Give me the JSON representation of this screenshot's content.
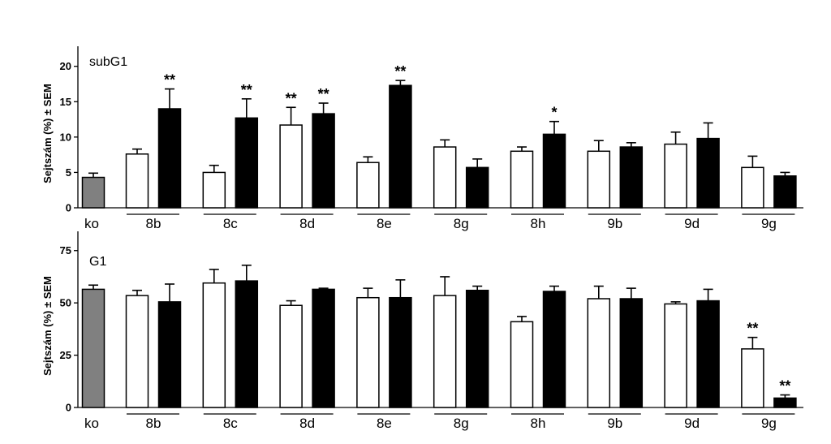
{
  "chart_data": [
    {
      "type": "bar",
      "panel_label": "subG1",
      "ylabel": "Sejtszám (%) ± SEM",
      "ylim": [
        0,
        21
      ],
      "yticks": [
        0,
        5,
        10,
        15,
        20
      ],
      "control": {
        "label": "ko",
        "value": 4.3,
        "sem": 0.6
      },
      "groups": [
        {
          "label": "8b",
          "open": {
            "value": 7.6,
            "sem": 0.7,
            "sig": ""
          },
          "filled": {
            "value": 14.0,
            "sem": 2.8,
            "sig": "**"
          }
        },
        {
          "label": "8c",
          "open": {
            "value": 5.0,
            "sem": 1.0,
            "sig": ""
          },
          "filled": {
            "value": 12.7,
            "sem": 2.7,
            "sig": "**"
          }
        },
        {
          "label": "8d",
          "open": {
            "value": 11.7,
            "sem": 2.5,
            "sig": "**"
          },
          "filled": {
            "value": 13.3,
            "sem": 1.5,
            "sig": "**"
          }
        },
        {
          "label": "8e",
          "open": {
            "value": 6.4,
            "sem": 0.8,
            "sig": ""
          },
          "filled": {
            "value": 17.3,
            "sem": 0.7,
            "sig": "**"
          }
        },
        {
          "label": "8g",
          "open": {
            "value": 8.6,
            "sem": 1.0,
            "sig": ""
          },
          "filled": {
            "value": 5.7,
            "sem": 1.2,
            "sig": ""
          }
        },
        {
          "label": "8h",
          "open": {
            "value": 8.0,
            "sem": 0.6,
            "sig": ""
          },
          "filled": {
            "value": 10.4,
            "sem": 1.8,
            "sig": "*"
          }
        },
        {
          "label": "9b",
          "open": {
            "value": 8.0,
            "sem": 1.5,
            "sig": ""
          },
          "filled": {
            "value": 8.6,
            "sem": 0.6,
            "sig": ""
          }
        },
        {
          "label": "9d",
          "open": {
            "value": 9.0,
            "sem": 1.7,
            "sig": ""
          },
          "filled": {
            "value": 9.8,
            "sem": 2.2,
            "sig": ""
          }
        },
        {
          "label": "9g",
          "open": {
            "value": 5.7,
            "sem": 1.6,
            "sig": ""
          },
          "filled": {
            "value": 4.5,
            "sem": 0.5,
            "sig": ""
          }
        }
      ]
    },
    {
      "type": "bar",
      "panel_label": "G1",
      "ylabel": "Sejtszám (%) ± SEM",
      "ylim": [
        0,
        78
      ],
      "yticks": [
        0,
        25,
        50,
        75
      ],
      "control": {
        "label": "ko",
        "value": 56.5,
        "sem": 2.0
      },
      "groups": [
        {
          "label": "8b",
          "open": {
            "value": 53.5,
            "sem": 2.5,
            "sig": ""
          },
          "filled": {
            "value": 50.5,
            "sem": 8.5,
            "sig": ""
          }
        },
        {
          "label": "8c",
          "open": {
            "value": 59.5,
            "sem": 6.5,
            "sig": ""
          },
          "filled": {
            "value": 60.5,
            "sem": 7.5,
            "sig": ""
          }
        },
        {
          "label": "8d",
          "open": {
            "value": 48.8,
            "sem": 2.2,
            "sig": ""
          },
          "filled": {
            "value": 56.5,
            "sem": 0.5,
            "sig": ""
          }
        },
        {
          "label": "8e",
          "open": {
            "value": 52.5,
            "sem": 4.5,
            "sig": ""
          },
          "filled": {
            "value": 52.5,
            "sem": 8.5,
            "sig": ""
          }
        },
        {
          "label": "8g",
          "open": {
            "value": 53.5,
            "sem": 9.0,
            "sig": ""
          },
          "filled": {
            "value": 56.0,
            "sem": 2.0,
            "sig": ""
          }
        },
        {
          "label": "8h",
          "open": {
            "value": 41.0,
            "sem": 2.5,
            "sig": ""
          },
          "filled": {
            "value": 55.5,
            "sem": 2.5,
            "sig": ""
          }
        },
        {
          "label": "9b",
          "open": {
            "value": 52.0,
            "sem": 6.0,
            "sig": ""
          },
          "filled": {
            "value": 52.0,
            "sem": 5.0,
            "sig": ""
          }
        },
        {
          "label": "9d",
          "open": {
            "value": 49.5,
            "sem": 1.0,
            "sig": ""
          },
          "filled": {
            "value": 51.0,
            "sem": 5.5,
            "sig": ""
          }
        },
        {
          "label": "9g",
          "open": {
            "value": 28.0,
            "sem": 5.5,
            "sig": "**"
          },
          "filled": {
            "value": 4.5,
            "sem": 1.5,
            "sig": "**"
          }
        }
      ]
    }
  ]
}
